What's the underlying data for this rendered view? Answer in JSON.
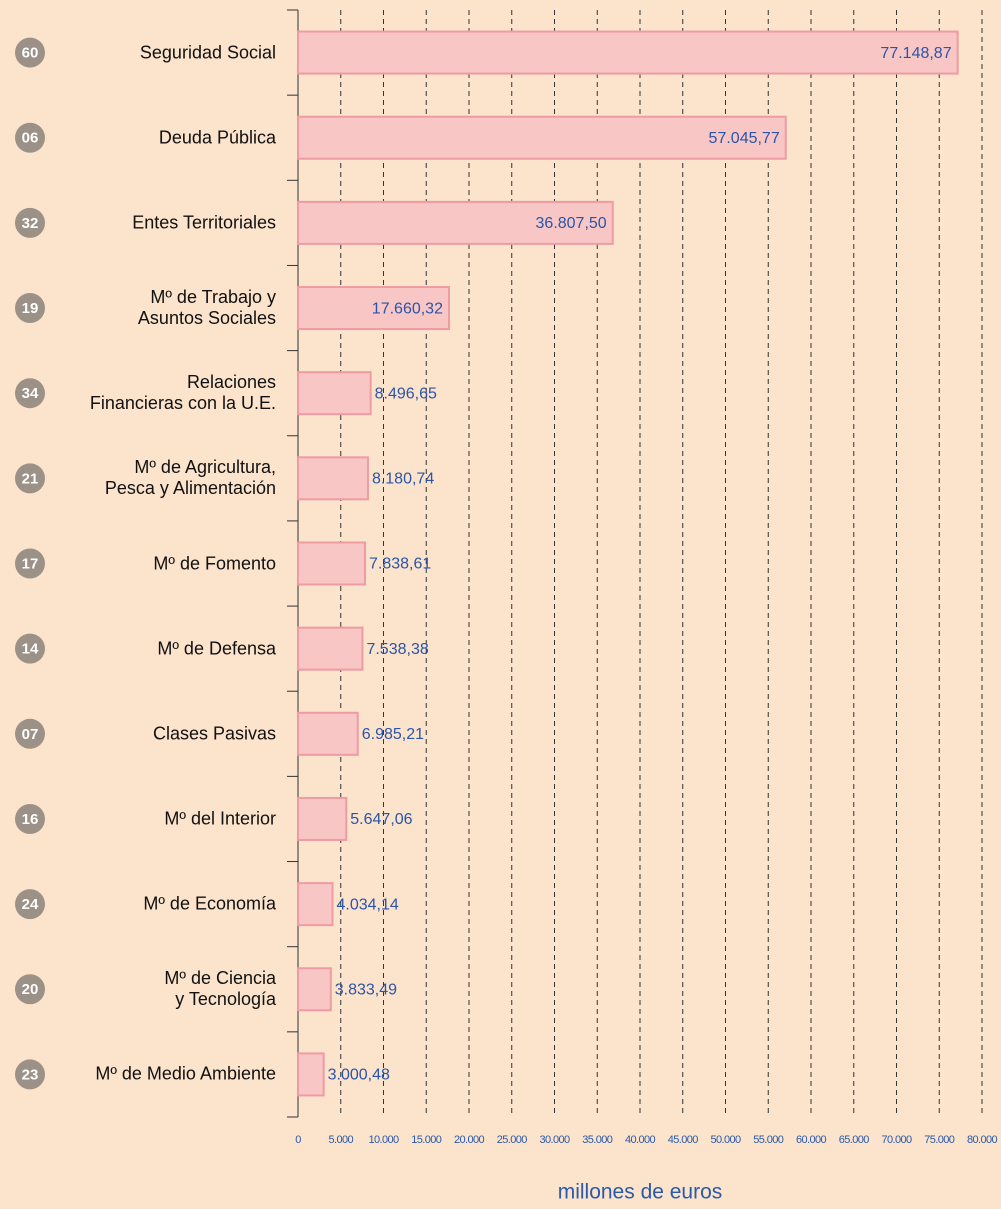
{
  "chart_data": {
    "type": "bar",
    "orientation": "horizontal",
    "xlabel": "millones de euros",
    "codes": [
      "60",
      "06",
      "32",
      "19",
      "34",
      "21",
      "17",
      "14",
      "07",
      "16",
      "24",
      "20",
      "23"
    ],
    "categories": [
      "Seguridad Social",
      "Deuda Pública",
      "Entes Territoriales",
      "Mº de Trabajo y\nAsuntos Sociales",
      "Relaciones\nFinancieras con la U.E.",
      "Mº de Agricultura,\nPesca y Alimentación",
      "Mº de Fomento",
      "Mº de Defensa",
      "Clases Pasivas",
      "Mº del Interior",
      "Mº de Economía",
      "Mº de Ciencia\ny Tecnología",
      "Mº de Medio Ambiente"
    ],
    "values": [
      77148.87,
      57045.77,
      36807.5,
      17660.32,
      8496.65,
      8180.74,
      7838.61,
      7538.38,
      6985.21,
      5647.06,
      4034.14,
      3833.49,
      3000.48
    ],
    "value_labels": [
      "77.148,87",
      "57.045,77",
      "36.807,50",
      "17.660,32",
      "8.496,65",
      "8.180,74",
      "7.838,61",
      "7.538,38",
      "6.985,21",
      "5.647,06",
      "4.034,14",
      "3.833,49",
      "3.000,48"
    ],
    "color": "#f9c6c6",
    "xlim": [
      0,
      80000
    ],
    "xticks": [
      0,
      {
        "value": 5000,
        "label": "5.000"
      },
      {
        "value": 10000,
        "label": "10.000"
      },
      {
        "value": 15000,
        "label": "15.000"
      },
      {
        "value": 20000,
        "label": "20.000"
      },
      {
        "value": 25000,
        "label": "25.000"
      },
      {
        "value": 30000,
        "label": "30.000"
      },
      {
        "value": 35000,
        "label": "35.000"
      },
      {
        "value": 40000,
        "label": "40.000"
      },
      {
        "value": 45000,
        "label": "45.000"
      },
      {
        "value": 50000,
        "label": "50.000"
      },
      {
        "value": 55000,
        "label": "55.000"
      },
      {
        "value": 60000,
        "label": "60.000"
      },
      {
        "value": 65000,
        "label": "65.000"
      },
      {
        "value": 70000,
        "label": "70.000"
      },
      {
        "value": 75000,
        "label": "75.000"
      },
      {
        "value": 80000,
        "label": "80.000"
      }
    ],
    "grid": true
  }
}
